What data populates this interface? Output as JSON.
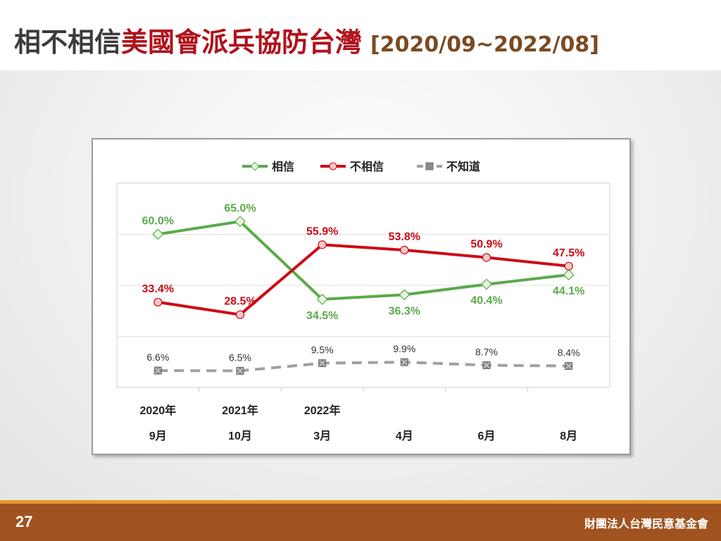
{
  "slide": {
    "title_part1": "相不相信",
    "title_part2": "美國會派兵協防台灣",
    "title_part3": "[2020/09~2022/08]",
    "page_number": "27",
    "organization": "財團法人台灣民意基金會"
  },
  "colors": {
    "believe": "#5aaa4a",
    "disbelieve": "#cc0a14",
    "unknown": "#a0a0a0",
    "title_accent": "#b0121b",
    "footer": "#a0521f",
    "footer_stripe": "#e39a2b"
  },
  "chart_data": {
    "type": "line",
    "categories": [
      [
        "2020年",
        "9月"
      ],
      [
        "2021年",
        "10月"
      ],
      [
        "2022年",
        "3月"
      ],
      [
        "",
        "4月"
      ],
      [
        "",
        "6月"
      ],
      [
        "",
        "8月"
      ]
    ],
    "series": [
      {
        "name": "相信",
        "values": [
          60.0,
          65.0,
          34.5,
          36.3,
          40.4,
          44.1
        ],
        "labels": [
          "60.0%",
          "65.0%",
          "34.5%",
          "36.3%",
          "40.4%",
          "44.1%"
        ],
        "label_pos": [
          "above",
          "above",
          "below",
          "below",
          "below",
          "below"
        ]
      },
      {
        "name": "不相信",
        "values": [
          33.4,
          28.5,
          55.9,
          53.8,
          50.9,
          47.5
        ],
        "labels": [
          "33.4%",
          "28.5%",
          "55.9%",
          "53.8%",
          "50.9%",
          "47.5%"
        ],
        "label_pos": [
          "above",
          "above",
          "above",
          "above",
          "above",
          "above"
        ]
      },
      {
        "name": "不知道",
        "values": [
          6.6,
          6.5,
          9.5,
          9.9,
          8.7,
          8.4
        ],
        "labels": [
          "6.6%",
          "6.5%",
          "9.5%",
          "9.9%",
          "8.7%",
          "8.4%"
        ],
        "label_pos": [
          "above",
          "above",
          "above",
          "above",
          "above",
          "above"
        ]
      }
    ],
    "ylim": [
      0,
      80
    ],
    "grid": true,
    "legend": "top"
  }
}
